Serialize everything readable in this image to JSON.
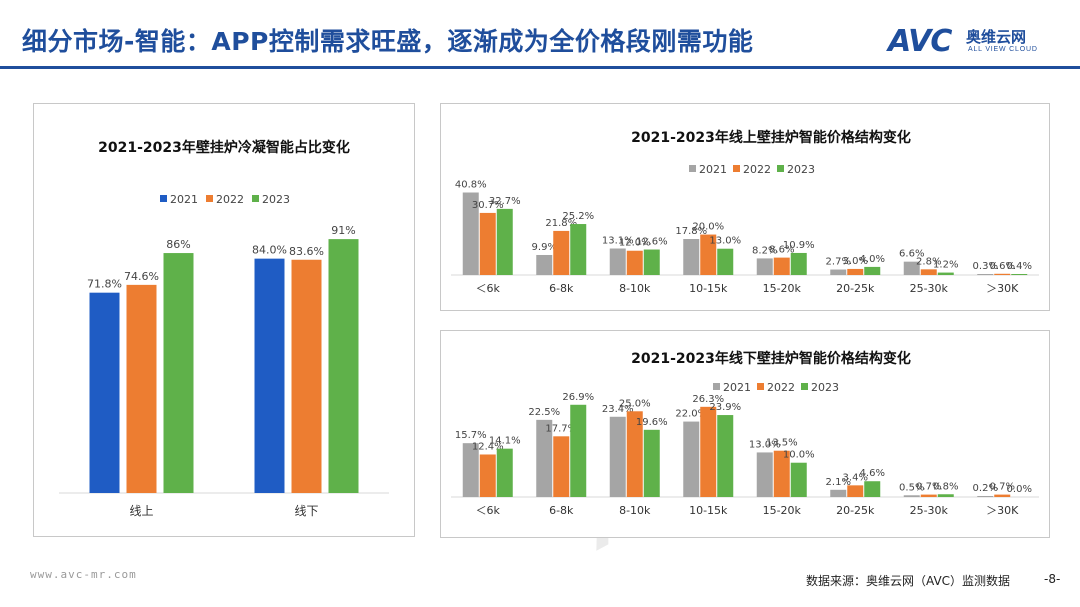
{
  "header": {
    "title": "细分市场-智能：APP控制需求旺盛，逐渐成为全价格段刚需功能",
    "logo_mark": "AVC",
    "logo_cn": "奥维云网",
    "logo_en": "ALL VIEW CLOUD"
  },
  "watermark": "AVC",
  "footer": {
    "url": "www.avc-mr.com",
    "source": "数据来源：奥维云网（AVC）监测数据",
    "page": "-8-"
  },
  "colors": {
    "series_2021_left": "#1f5cc4",
    "series_2021": "#a5a5a5",
    "series_2022": "#ed7d31",
    "series_2023": "#5fb14a",
    "accent": "#1f4e9c"
  },
  "chart_data": [
    {
      "type": "bar",
      "title": "2021-2023年壁挂炉冷凝智能占比变化",
      "categories": [
        "线上",
        "线下"
      ],
      "series": [
        {
          "name": "2021",
          "values": [
            71.8,
            84.0
          ],
          "labels": [
            "71.8%",
            "84.0%"
          ]
        },
        {
          "name": "2022",
          "values": [
            74.6,
            83.6
          ],
          "labels": [
            "74.6%",
            "83.6%"
          ]
        },
        {
          "name": "2023",
          "values": [
            86,
            91
          ],
          "labels": [
            "86%",
            "91%"
          ]
        }
      ],
      "legend": "top",
      "grid": false
    },
    {
      "type": "bar",
      "title": "2021-2023年线上壁挂炉智能价格结构变化",
      "categories": [
        "＜6k",
        "6-8k",
        "8-10k",
        "10-15k",
        "15-20k",
        "20-25k",
        "25-30k",
        "＞30K"
      ],
      "series": [
        {
          "name": "2021",
          "values": [
            40.8,
            9.9,
            13.1,
            17.8,
            8.2,
            2.7,
            6.6,
            0.3
          ],
          "labels": [
            "40.8%",
            "9.9%",
            "13.1%",
            "17.8%",
            "8.2%",
            "2.7%",
            "6.6%",
            "0.3%"
          ]
        },
        {
          "name": "2022",
          "values": [
            30.7,
            21.8,
            12.0,
            20.0,
            8.6,
            3.0,
            2.8,
            0.6
          ],
          "labels": [
            "30.7%",
            "21.8%",
            "12.0%",
            "20.0%",
            "8.6%",
            "3.0%",
            "2.8%",
            "0.6%"
          ]
        },
        {
          "name": "2023",
          "values": [
            32.7,
            25.2,
            12.6,
            13.0,
            10.9,
            4.0,
            1.2,
            0.4
          ],
          "labels": [
            "32.7%",
            "25.2%",
            "12.6%",
            "13.0%",
            "10.9%",
            "4.0%",
            "1.2%",
            "0.4%"
          ]
        }
      ],
      "legend": "top",
      "grid": false
    },
    {
      "type": "bar",
      "title": "2021-2023年线下壁挂炉智能价格结构变化",
      "categories": [
        "＜6k",
        "6-8k",
        "8-10k",
        "10-15k",
        "15-20k",
        "20-25k",
        "25-30k",
        "＞30K"
      ],
      "series": [
        {
          "name": "2021",
          "values": [
            15.7,
            22.5,
            23.4,
            22.0,
            13.0,
            2.1,
            0.5,
            0.2
          ],
          "labels": [
            "15.7%",
            "22.5%",
            "23.4%",
            "22.0%",
            "13.0%",
            "2.1%",
            "0.5%",
            "0.2%"
          ]
        },
        {
          "name": "2022",
          "values": [
            12.4,
            17.7,
            25.0,
            26.3,
            13.5,
            3.4,
            0.7,
            0.7
          ],
          "labels": [
            "12.4%",
            "17.7%",
            "25.0%",
            "26.3%",
            "13.5%",
            "3.4%",
            "0.7%",
            "0.7%"
          ]
        },
        {
          "name": "2023",
          "values": [
            14.1,
            26.9,
            19.6,
            23.9,
            10.0,
            4.6,
            0.8,
            0.0
          ],
          "labels": [
            "14.1%",
            "26.9%",
            "19.6%",
            "23.9%",
            "10.0%",
            "4.6%",
            "0.8%",
            "0.0%"
          ]
        }
      ],
      "legend": "top",
      "grid": false
    }
  ]
}
